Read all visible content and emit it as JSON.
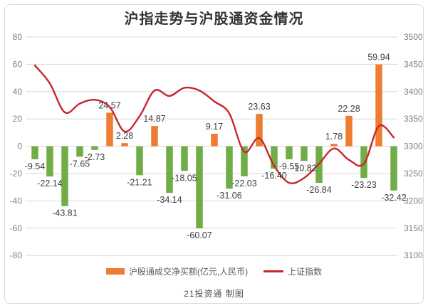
{
  "chart_data": {
    "type": "bar",
    "combo": "bar+line",
    "title": "沪指走势与沪股通资金情况",
    "caption": "21投资通 制图",
    "bar_series": {
      "name": "沪股通成交净买额(亿元,人民币)",
      "values": [
        -9.54,
        -22.14,
        -43.81,
        -7.65,
        -2.73,
        24.57,
        2.28,
        -21.21,
        14.87,
        -34.14,
        -18.05,
        -60.07,
        9.17,
        -31.06,
        -22.03,
        23.63,
        -16.4,
        -9.55,
        -10.82,
        -26.84,
        1.78,
        22.28,
        -23.23,
        59.94,
        -32.42
      ],
      "positive_color": "#ED7D31",
      "negative_color": "#70AD47"
    },
    "line_series": {
      "name": "上证指数",
      "color": "#C9252C",
      "values": [
        3448,
        3415,
        3362,
        3378,
        3385,
        3372,
        3327,
        3355,
        3402,
        3392,
        3407,
        3402,
        3382,
        3360,
        3290,
        3315,
        3264,
        3233,
        3242,
        3268,
        3296,
        3275,
        3268,
        3337,
        3316
      ]
    },
    "left_axis": {
      "ticks": [
        80,
        60,
        40,
        20,
        0,
        -20,
        -40,
        -60,
        -80
      ],
      "max": 80,
      "min": -80
    },
    "right_axis": {
      "ticks": [
        3500,
        3450,
        3400,
        3350,
        3300,
        3250,
        3200,
        3150,
        3100
      ],
      "max": 3500,
      "min": 3100
    },
    "grid": true,
    "legend_position": "bottom",
    "colors": {
      "gridline": "#D9D9D9",
      "axis_label": "#808080",
      "data_label": "#404040",
      "title": "#333333",
      "legend_text": "#595959",
      "border": "#D9D9D9"
    }
  }
}
